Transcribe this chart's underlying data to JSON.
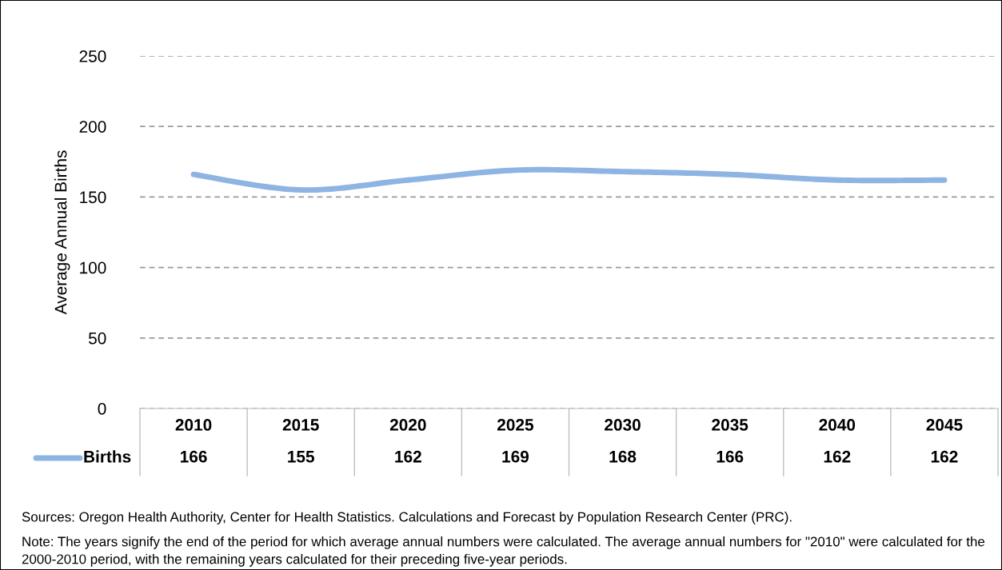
{
  "chart_data": {
    "type": "line",
    "ylabel": "Average Annual Births",
    "categories": [
      "2010",
      "2015",
      "2020",
      "2025",
      "2030",
      "2035",
      "2040",
      "2045"
    ],
    "series": [
      {
        "name": "Births",
        "color": "#8eb4e3",
        "values": [
          166,
          155,
          162,
          169,
          168,
          166,
          162,
          162
        ]
      }
    ],
    "ylim": [
      0,
      250
    ],
    "yticks": [
      0,
      50,
      100,
      150,
      200,
      250
    ],
    "grid": "y",
    "line_style": "solid",
    "marker": "none",
    "data_labels": true,
    "legend": "bottom",
    "annotations": [
      "Sources: Oregon Health Authority, Center for Health Statistics. Calculations and Forecast by Population Research Center (PRC).",
      "Note: The years signify the end of the period for which average annual numbers were calculated. The average annual numbers for \"2010\" were calculated for the 2000-2010 period, with the remaining years calculated for their preceding five-year periods."
    ]
  }
}
